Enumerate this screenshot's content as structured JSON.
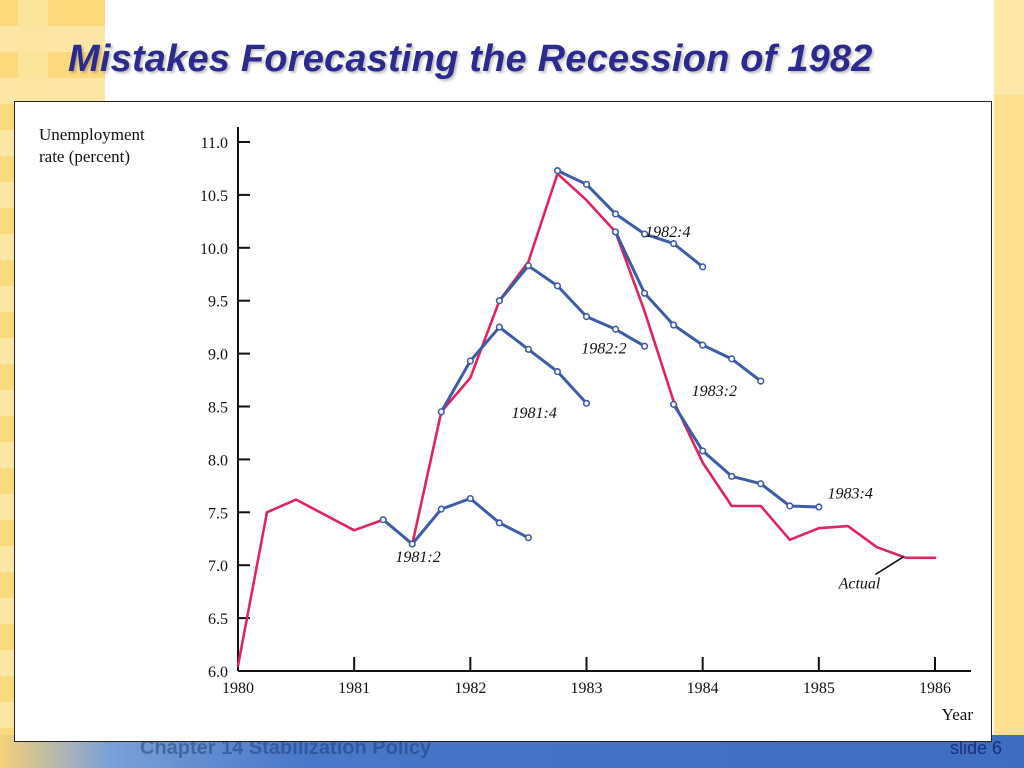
{
  "slide": {
    "title": "Mistakes Forecasting the Recession of 1982",
    "footer_text": "Chapter 14  Stabilization Policy",
    "slide_number": "slide 6"
  },
  "colors": {
    "actual": "#e0245e",
    "forecast": "#3d5ca8",
    "title": "#2a2a8f"
  },
  "chart_data": {
    "type": "line",
    "title": "",
    "ylabel_line1": "Unemployment",
    "ylabel_line2": "rate (percent)",
    "xlabel": "Year",
    "xlim": [
      1980,
      1986.3
    ],
    "ylim": [
      6.0,
      11.0
    ],
    "x_ticks": [
      "1980",
      "1981",
      "1982",
      "1983",
      "1984",
      "1985",
      "1986"
    ],
    "y_ticks": [
      "6.0",
      "6.5",
      "7.0",
      "7.5",
      "8.0",
      "8.5",
      "9.0",
      "9.5",
      "10.0",
      "10.5",
      "11.0"
    ],
    "series": [
      {
        "name": "Actual",
        "label_pos": [
          1985.35,
          6.78
        ],
        "points": [
          [
            1980.0,
            6.05
          ],
          [
            1980.25,
            7.5
          ],
          [
            1980.5,
            7.62
          ],
          [
            1981.0,
            7.33
          ],
          [
            1981.25,
            7.43
          ],
          [
            1981.5,
            7.2
          ],
          [
            1981.75,
            8.45
          ],
          [
            1982.0,
            8.77
          ],
          [
            1982.25,
            9.5
          ],
          [
            1982.5,
            9.87
          ],
          [
            1982.75,
            10.7
          ],
          [
            1983.0,
            10.45
          ],
          [
            1983.25,
            10.15
          ],
          [
            1983.5,
            9.4
          ],
          [
            1983.75,
            8.55
          ],
          [
            1984.0,
            7.97
          ],
          [
            1984.25,
            7.56
          ],
          [
            1984.5,
            7.56
          ],
          [
            1984.75,
            7.24
          ],
          [
            1985.0,
            7.35
          ],
          [
            1985.25,
            7.37
          ],
          [
            1985.5,
            7.17
          ],
          [
            1985.75,
            7.07
          ],
          [
            1986.0,
            7.07
          ]
        ]
      },
      {
        "name": "1981:2",
        "label_pos": [
          1981.55,
          7.03
        ],
        "points": [
          [
            1981.25,
            7.43
          ],
          [
            1981.5,
            7.2
          ],
          [
            1981.75,
            7.53
          ],
          [
            1982.0,
            7.63
          ],
          [
            1982.25,
            7.4
          ],
          [
            1982.5,
            7.26
          ]
        ]
      },
      {
        "name": "1981:4",
        "label_pos": [
          1982.55,
          8.39
        ],
        "points": [
          [
            1981.75,
            8.45
          ],
          [
            1982.0,
            8.93
          ],
          [
            1982.25,
            9.25
          ],
          [
            1982.5,
            9.04
          ],
          [
            1982.75,
            8.83
          ],
          [
            1983.0,
            8.53
          ]
        ]
      },
      {
        "name": "1982:2",
        "label_pos": [
          1983.15,
          9.0
        ],
        "points": [
          [
            1982.25,
            9.5
          ],
          [
            1982.5,
            9.83
          ],
          [
            1982.75,
            9.64
          ],
          [
            1983.0,
            9.35
          ],
          [
            1983.25,
            9.23
          ],
          [
            1983.5,
            9.07
          ]
        ]
      },
      {
        "name": "1982:4",
        "label_pos": [
          1983.7,
          10.1
        ],
        "points": [
          [
            1982.75,
            10.73
          ],
          [
            1983.0,
            10.6
          ],
          [
            1983.25,
            10.32
          ],
          [
            1983.5,
            10.13
          ],
          [
            1983.75,
            10.04
          ],
          [
            1984.0,
            9.82
          ]
        ]
      },
      {
        "name": "1983:2",
        "label_pos": [
          1984.1,
          8.6
        ],
        "points": [
          [
            1983.25,
            10.15
          ],
          [
            1983.5,
            9.57
          ],
          [
            1983.75,
            9.27
          ],
          [
            1984.0,
            9.08
          ],
          [
            1984.25,
            8.95
          ],
          [
            1984.5,
            8.74
          ]
        ]
      },
      {
        "name": "1983:4",
        "label_pos": [
          1985.27,
          7.63
        ],
        "points": [
          [
            1983.75,
            8.52
          ],
          [
            1984.0,
            8.08
          ],
          [
            1984.25,
            7.84
          ],
          [
            1984.5,
            7.77
          ],
          [
            1984.75,
            7.56
          ],
          [
            1985.0,
            7.55
          ]
        ]
      }
    ]
  }
}
